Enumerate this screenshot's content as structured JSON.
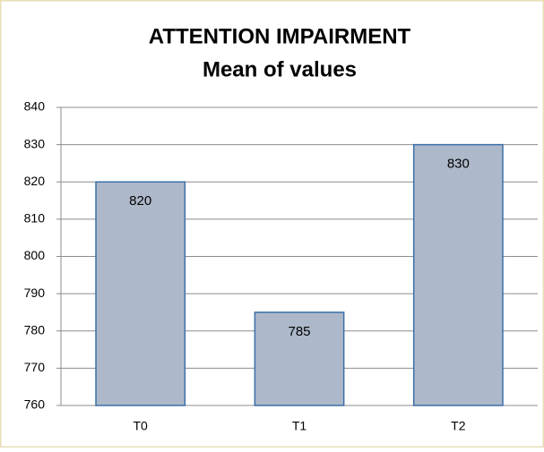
{
  "chart_data": {
    "type": "bar",
    "title": "ATTENTION IMPAIRMENT",
    "subtitle": "Mean of values",
    "categories": [
      "T0",
      "T1",
      "T2"
    ],
    "values": [
      820,
      785,
      830
    ],
    "color": "#adb9ca",
    "edge_color": "#3c6ea8",
    "ylim": [
      760,
      840
    ],
    "yticks": [
      760,
      770,
      780,
      790,
      800,
      810,
      820,
      830,
      840
    ],
    "grid": true
  }
}
